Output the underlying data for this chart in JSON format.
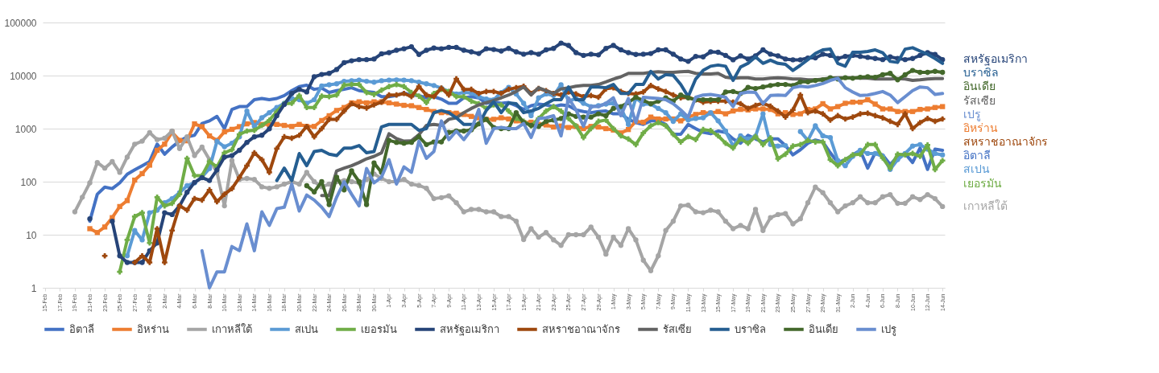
{
  "chart_data": {
    "type": "line",
    "log": "y",
    "grid": "y",
    "legend": "bottom",
    "ylim": [
      1,
      100000
    ],
    "yticks": [
      1,
      10,
      100,
      1000,
      10000,
      100000
    ],
    "categories": [
      "15-Feb",
      null,
      "17-Feb",
      null,
      "19-Feb",
      null,
      "21-Feb",
      null,
      "23-Feb",
      null,
      "25-Feb",
      null,
      "27-Feb",
      null,
      "29-Feb",
      null,
      "2-Mar",
      null,
      "4-Mar",
      null,
      "6-Mar",
      null,
      "8-Mar",
      null,
      "10-Mar",
      null,
      "12-Mar",
      null,
      "14-Mar",
      null,
      "16-Mar",
      null,
      "18-Mar",
      null,
      "20-Mar",
      null,
      "22-Mar",
      null,
      "24-Mar",
      null,
      "26-Mar",
      null,
      "28-Mar",
      null,
      "30-Mar",
      null,
      "1-Apr",
      null,
      "3-Apr",
      null,
      "5-Apr",
      null,
      "7-Apr",
      null,
      "9-Apr",
      null,
      "11-Apr",
      null,
      "13-Apr",
      null,
      "15-Apr",
      null,
      "17-Apr",
      null,
      "19-Apr",
      null,
      "21-Apr",
      null,
      "23-Apr",
      null,
      "25-Apr",
      null,
      "27-Apr",
      null,
      "29-Apr",
      null,
      "1-May",
      null,
      "3-May",
      null,
      "5-May",
      null,
      "7-May",
      null,
      "9-May",
      null,
      "11-May",
      null,
      "13-May",
      null,
      "15-May",
      null,
      "17-May",
      null,
      "19-May",
      null,
      "21-May",
      null,
      "23-May",
      null,
      "25-May",
      null,
      "27-May",
      null,
      "29-May",
      null,
      "31-May",
      null,
      "2-Jun",
      null,
      "4-Jun",
      null,
      "6-Jun",
      null,
      "8-Jun",
      null,
      "10-Jun",
      null,
      "12-Jun",
      null,
      "14-Jun"
    ],
    "series": [
      {
        "name": "อิตาลี",
        "color": "#4472c4",
        "marker": "none",
        "values": [
          null,
          null,
          null,
          null,
          null,
          null,
          18,
          58,
          79,
          74,
          95,
          138,
          167,
          200,
          240,
          510,
          330,
          450,
          580,
          700,
          750,
          1250,
          1400,
          1700,
          1000,
          2300,
          2600,
          2600,
          3500,
          3700,
          3500,
          3700,
          4200,
          5200,
          6200,
          6600,
          5500,
          5800,
          4800,
          5200,
          5500,
          5900,
          5200,
          5000,
          4800,
          4000,
          4000,
          4200,
          4700,
          4300,
          4200,
          3800,
          4000,
          3600,
          3000,
          3000,
          3800,
          4000,
          3800,
          3000,
          3200,
          3000,
          3100,
          2700,
          2300,
          2700,
          2900,
          2800,
          2600,
          2800,
          2700,
          2250,
          2100,
          2000,
          2100,
          2150,
          1900,
          1900,
          1500,
          1300,
          1200,
          1400,
          1400,
          1200,
          780,
          780,
          1200,
          1000,
          850,
          800,
          900,
          850,
          640,
          530,
          750,
          640,
          560,
          640,
          640,
          480,
          320,
          400,
          530,
          610,
          560,
          350,
          230,
          260,
          320,
          390,
          180,
          350,
          320,
          210,
          300,
          340,
          230,
          430,
          170,
          410,
          390
        ]
      },
      {
        "name": "อิหร่าน",
        "color": "#ed7d31",
        "marker": "square",
        "values": [
          null,
          null,
          null,
          null,
          null,
          null,
          13,
          11,
          14,
          21,
          34,
          44,
          107,
          142,
          205,
          390,
          510,
          850,
          600,
          590,
          1230,
          1090,
          730,
          600,
          870,
          970,
          1090,
          1230,
          1300,
          1200,
          1200,
          1200,
          1150,
          1100,
          1200,
          1100,
          1100,
          1420,
          1750,
          2200,
          2500,
          3060,
          3200,
          3060,
          3200,
          3200,
          3060,
          2900,
          2750,
          2700,
          2500,
          2300,
          2100,
          2000,
          2000,
          1950,
          1850,
          1700,
          1600,
          1500,
          1500,
          1600,
          1520,
          1400,
          1300,
          1320,
          1200,
          1170,
          1070,
          1120,
          1050,
          1100,
          1000,
          1100,
          1070,
          1000,
          940,
          830,
          960,
          1370,
          1320,
          1650,
          1520,
          1520,
          1520,
          1400,
          1650,
          1850,
          2000,
          1950,
          2100,
          1900,
          2150,
          2300,
          2250,
          2350,
          2350,
          2300,
          1900,
          2000,
          1850,
          1900,
          2300,
          2350,
          2950,
          2350,
          2600,
          3000,
          3150,
          3150,
          3500,
          2900,
          2350,
          2350,
          2100,
          2100,
          2100,
          2300,
          2350,
          2500,
          2600
        ]
      },
      {
        "name": "เกาหลีใต้",
        "color": "#a5a5a5",
        "marker": "circle",
        "values": [
          null,
          null,
          null,
          null,
          27,
          51,
          95,
          230,
          180,
          240,
          150,
          290,
          510,
          580,
          840,
          620,
          660,
          900,
          420,
          700,
          310,
          450,
          260,
          150,
          35,
          250,
          110,
          115,
          110,
          80,
          75,
          80,
          90,
          100,
          90,
          150,
          100,
          80,
          90,
          100,
          105,
          100,
          95,
          110,
          140,
          115,
          100,
          100,
          110,
          90,
          85,
          75,
          48,
          50,
          54,
          40,
          27,
          30,
          30,
          27,
          27,
          22,
          22,
          18,
          8.1,
          13,
          9,
          11,
          8,
          6.3,
          10,
          10,
          10,
          14,
          9,
          4.3,
          9,
          6.3,
          13,
          8,
          3.3,
          2.1,
          4,
          12,
          18,
          35,
          36,
          27,
          26,
          29,
          27,
          18,
          13,
          15,
          13,
          30,
          12,
          21,
          24,
          25,
          16,
          20,
          40,
          79,
          62,
          40,
          27,
          35,
          40,
          52,
          40,
          40,
          52,
          57,
          39,
          39,
          52,
          46,
          57,
          48,
          34
        ]
      },
      {
        "name": "สเปน",
        "color": "#5b9bd5",
        "marker": "circle",
        "values": [
          null,
          null,
          null,
          null,
          null,
          null,
          null,
          null,
          null,
          null,
          null,
          4,
          12,
          8,
          26,
          29,
          40,
          48,
          62,
          84,
          95,
          123,
          177,
          580,
          455,
          530,
          700,
          2150,
          1100,
          1600,
          2000,
          2500,
          3000,
          3700,
          3500,
          3000,
          3500,
          6400,
          6700,
          7000,
          7800,
          8000,
          8200,
          7800,
          7500,
          8000,
          8200,
          8300,
          8200,
          8000,
          7500,
          7000,
          6500,
          5800,
          5000,
          4500,
          4800,
          4700,
          4000,
          3600,
          3500,
          4800,
          6000,
          4500,
          3000,
          1750,
          3800,
          4500,
          4200,
          6700,
          3300,
          3700,
          3000,
          2600,
          2700,
          2900,
          3000,
          2500,
          1200,
          3800,
          2900,
          2900,
          2400,
          2000,
          1370,
          1900,
          1450,
          1550,
          1600,
          2000,
          1400,
          900,
          470,
          730,
          640,
          720,
          1900,
          500,
          470,
          480,
          null,
          880,
          600,
          1130,
          730,
          680,
          250,
          200,
          300,
          390,
          340,
          340,
          300,
          170,
          260,
          340,
          470,
          500,
          410,
          340,
          320
        ]
      },
      {
        "name": "เยอรมัน",
        "color": "#70ad47",
        "marker": "cross",
        "values": [
          null,
          null,
          null,
          null,
          null,
          null,
          null,
          null,
          null,
          null,
          2,
          8,
          22,
          26,
          7,
          51,
          35,
          39,
          58,
          275,
          130,
          130,
          240,
          190,
          350,
          400,
          780,
          900,
          930,
          1150,
          1440,
          2100,
          2950,
          3000,
          4200,
          2500,
          2500,
          4100,
          4000,
          4300,
          6600,
          6800,
          6800,
          4800,
          4400,
          5300,
          6200,
          6800,
          6200,
          4800,
          4100,
          3100,
          4600,
          5500,
          5000,
          4000,
          4000,
          3300,
          2950,
          2400,
          2800,
          2800,
          2150,
          1550,
          1370,
          1130,
          1550,
          2150,
          2600,
          2150,
          1550,
          1130,
          680,
          1000,
          1370,
          1450,
          1000,
          730,
          640,
          500,
          830,
          1130,
          1300,
          1130,
          780,
          560,
          710,
          620,
          960,
          920,
          730,
          530,
          430,
          640,
          530,
          710,
          500,
          670,
          270,
          330,
          470,
          500,
          600,
          560,
          560,
          260,
          200,
          260,
          320,
          330,
          500,
          500,
          280,
          180,
          330,
          320,
          340,
          300,
          490,
          170,
          250
        ]
      },
      {
        "name": "สหรัฐอเมริกา",
        "color": "#264478",
        "marker": "circle",
        "values": [
          null,
          null,
          null,
          null,
          null,
          null,
          20,
          null,
          null,
          18,
          4,
          3,
          3,
          3,
          5,
          7,
          26,
          24,
          35,
          63,
          97,
          119,
          105,
          167,
          290,
          310,
          390,
          550,
          700,
          750,
          990,
          1750,
          2860,
          4600,
          5500,
          4900,
          9500,
          10500,
          11000,
          13000,
          17500,
          19000,
          20000,
          20000,
          20500,
          25700,
          27000,
          30000,
          32000,
          35000,
          25000,
          30000,
          33000,
          32000,
          34000,
          34000,
          30000,
          28000,
          26000,
          32000,
          31000,
          29000,
          32500,
          28000,
          25300,
          27000,
          25300,
          30500,
          32500,
          41000,
          37000,
          27000,
          24000,
          25300,
          24500,
          32500,
          37000,
          30500,
          27000,
          25000,
          25300,
          26000,
          30500,
          30500,
          25300,
          20500,
          18500,
          23000,
          22500,
          28000,
          27500,
          24000,
          19800,
          23500,
          20500,
          23500,
          30500,
          25300,
          23500,
          20500,
          19800,
          19800,
          21500,
          21500,
          25300,
          24000,
          21000,
          23000,
          24000,
          23000,
          22000,
          21000,
          20000,
          22500,
          21000,
          20000,
          21000,
          24000,
          27000,
          25000,
          20000
        ]
      },
      {
        "name": "สหราชอาณาจักร",
        "color": "#9e480e",
        "marker": "cross",
        "values": [
          null,
          null,
          null,
          null,
          null,
          null,
          null,
          null,
          4,
          null,
          null,
          null,
          3,
          4,
          3,
          13,
          3,
          12,
          35,
          29,
          48,
          45,
          70,
          42,
          58,
          74,
          120,
          200,
          350,
          260,
          150,
          420,
          700,
          660,
          750,
          1100,
          700,
          1000,
          1500,
          1500,
          2150,
          2950,
          2600,
          2450,
          2800,
          3150,
          4300,
          4300,
          4600,
          4000,
          6200,
          4300,
          4000,
          5800,
          4300,
          8700,
          5500,
          5500,
          4600,
          5000,
          5000,
          4600,
          5500,
          5900,
          6300,
          4600,
          5700,
          5200,
          4600,
          4300,
          4900,
          4500,
          4000,
          4200,
          3900,
          5600,
          5900,
          5000,
          4600,
          4500,
          4900,
          6500,
          5600,
          5000,
          4300,
          3800,
          3900,
          3500,
          3150,
          3250,
          3300,
          3300,
          3150,
          2950,
          2400,
          2750,
          3000,
          2650,
          2150,
          1650,
          2250,
          4300,
          2000,
          2150,
          1900,
          1450,
          1750,
          1520,
          1650,
          1900,
          1950,
          1750,
          1600,
          1370,
          1200,
          1900,
          1000,
          1300,
          1550,
          1370,
          1520
        ]
      },
      {
        "name": "รัสเซีย",
        "color": "#636363",
        "marker": "none",
        "values": [
          null,
          null,
          null,
          null,
          null,
          null,
          null,
          null,
          null,
          null,
          null,
          null,
          null,
          null,
          null,
          null,
          null,
          null,
          null,
          null,
          null,
          null,
          null,
          null,
          null,
          null,
          null,
          null,
          null,
          null,
          null,
          null,
          null,
          null,
          null,
          null,
          null,
          55,
          55,
          160,
          180,
          200,
          230,
          270,
          300,
          350,
          800,
          650,
          580,
          590,
          770,
          1150,
          1200,
          1150,
          1500,
          1600,
          2000,
          2400,
          2800,
          3100,
          3400,
          3800,
          4300,
          5000,
          6100,
          4300,
          5900,
          5200,
          4600,
          5600,
          5900,
          6300,
          6500,
          6500,
          6800,
          7600,
          8600,
          9500,
          11000,
          11000,
          11000,
          11500,
          11800,
          11500,
          11500,
          11800,
          12000,
          11000,
          10700,
          10700,
          11000,
          9300,
          8900,
          9100,
          9100,
          8600,
          8600,
          8900,
          9100,
          8900,
          8600,
          8600,
          8300,
          8300,
          8600,
          8900,
          9100,
          9100,
          9100,
          8900,
          8900,
          8600,
          8600,
          8600,
          8800,
          8600,
          8100,
          8300,
          8600,
          8800,
          8800
        ]
      },
      {
        "name": "บราซิล",
        "color": "#255e91",
        "marker": "none",
        "values": [
          null,
          null,
          null,
          null,
          null,
          null,
          null,
          null,
          null,
          null,
          null,
          null,
          null,
          null,
          null,
          null,
          null,
          null,
          null,
          null,
          null,
          null,
          null,
          null,
          null,
          null,
          null,
          null,
          null,
          null,
          null,
          105,
          180,
          105,
          340,
          200,
          370,
          390,
          330,
          310,
          430,
          430,
          480,
          350,
          370,
          1080,
          1200,
          1200,
          1200,
          1200,
          930,
          1000,
          2000,
          2200,
          2000,
          1600,
          1200,
          1200,
          1200,
          2200,
          3200,
          2000,
          3050,
          2950,
          2000,
          2150,
          2400,
          2950,
          3500,
          3500,
          6100,
          3500,
          3500,
          6100,
          6100,
          5900,
          6800,
          4600,
          4600,
          6800,
          6800,
          12000,
          8600,
          10400,
          10100,
          6800,
          4000,
          8600,
          12500,
          15000,
          15800,
          15000,
          8100,
          14500,
          17000,
          22500,
          17000,
          19500,
          17000,
          16300,
          12500,
          15600,
          20000,
          26000,
          30500,
          31500,
          17000,
          15000,
          27500,
          27500,
          28500,
          30500,
          27000,
          18500,
          17700,
          31500,
          33500,
          29000,
          25300,
          21000,
          17000
        ]
      },
      {
        "name": "อินเดีย",
        "color": "#43682b",
        "marker": "circle",
        "values": [
          null,
          null,
          null,
          null,
          null,
          null,
          null,
          null,
          null,
          null,
          null,
          null,
          null,
          null,
          null,
          null,
          null,
          null,
          null,
          null,
          null,
          null,
          null,
          null,
          null,
          null,
          null,
          null,
          null,
          null,
          null,
          null,
          null,
          null,
          null,
          84,
          64,
          100,
          37,
          122,
          70,
          160,
          100,
          37,
          225,
          150,
          600,
          550,
          530,
          550,
          700,
          500,
          560,
          560,
          850,
          900,
          900,
          950,
          1230,
          1500,
          1050,
          1000,
          1000,
          2000,
          1300,
          1150,
          1100,
          1370,
          1450,
          1550,
          1900,
          1700,
          1650,
          1650,
          1900,
          1750,
          2400,
          2600,
          3100,
          3900,
          3400,
          2950,
          3300,
          3800,
          3300,
          4300,
          3800,
          3500,
          3500,
          3500,
          3500,
          4900,
          5000,
          4600,
          6000,
          5700,
          6100,
          6500,
          6800,
          6800,
          6500,
          7600,
          7600,
          8100,
          8300,
          9100,
          8600,
          9100,
          8900,
          9300,
          9500,
          9300,
          10400,
          11000,
          8300,
          10400,
          12500,
          11500,
          11500,
          12000,
          11500
        ]
      },
      {
        "name": "เปรู",
        "color": "#698ed0",
        "marker": "none",
        "values": [
          null,
          null,
          null,
          null,
          null,
          null,
          null,
          null,
          null,
          null,
          null,
          null,
          null,
          null,
          null,
          null,
          null,
          null,
          null,
          null,
          null,
          5,
          1,
          2,
          2,
          6,
          5,
          16,
          5,
          27,
          15,
          31,
          33,
          90,
          28,
          56,
          45,
          33,
          22,
          51,
          100,
          58,
          35,
          177,
          95,
          122,
          260,
          90,
          190,
          150,
          580,
          275,
          370,
          1400,
          620,
          900,
          620,
          950,
          2300,
          530,
          1000,
          1050,
          1000,
          1000,
          1250,
          680,
          1550,
          1600,
          1750,
          730,
          3800,
          2250,
          1100,
          2600,
          2600,
          3000,
          3800,
          1750,
          3700,
          1300,
          3900,
          3800,
          3700,
          3500,
          2950,
          2250,
          1650,
          3900,
          4300,
          4400,
          4200,
          3900,
          2600,
          4600,
          4900,
          4800,
          2950,
          4200,
          4300,
          4200,
          5900,
          6300,
          6100,
          6500,
          7100,
          8100,
          8900,
          5900,
          4900,
          4200,
          4300,
          4600,
          5000,
          4300,
          3100,
          4000,
          5200,
          6100,
          5900,
          4400,
          4600
        ]
      }
    ]
  }
}
